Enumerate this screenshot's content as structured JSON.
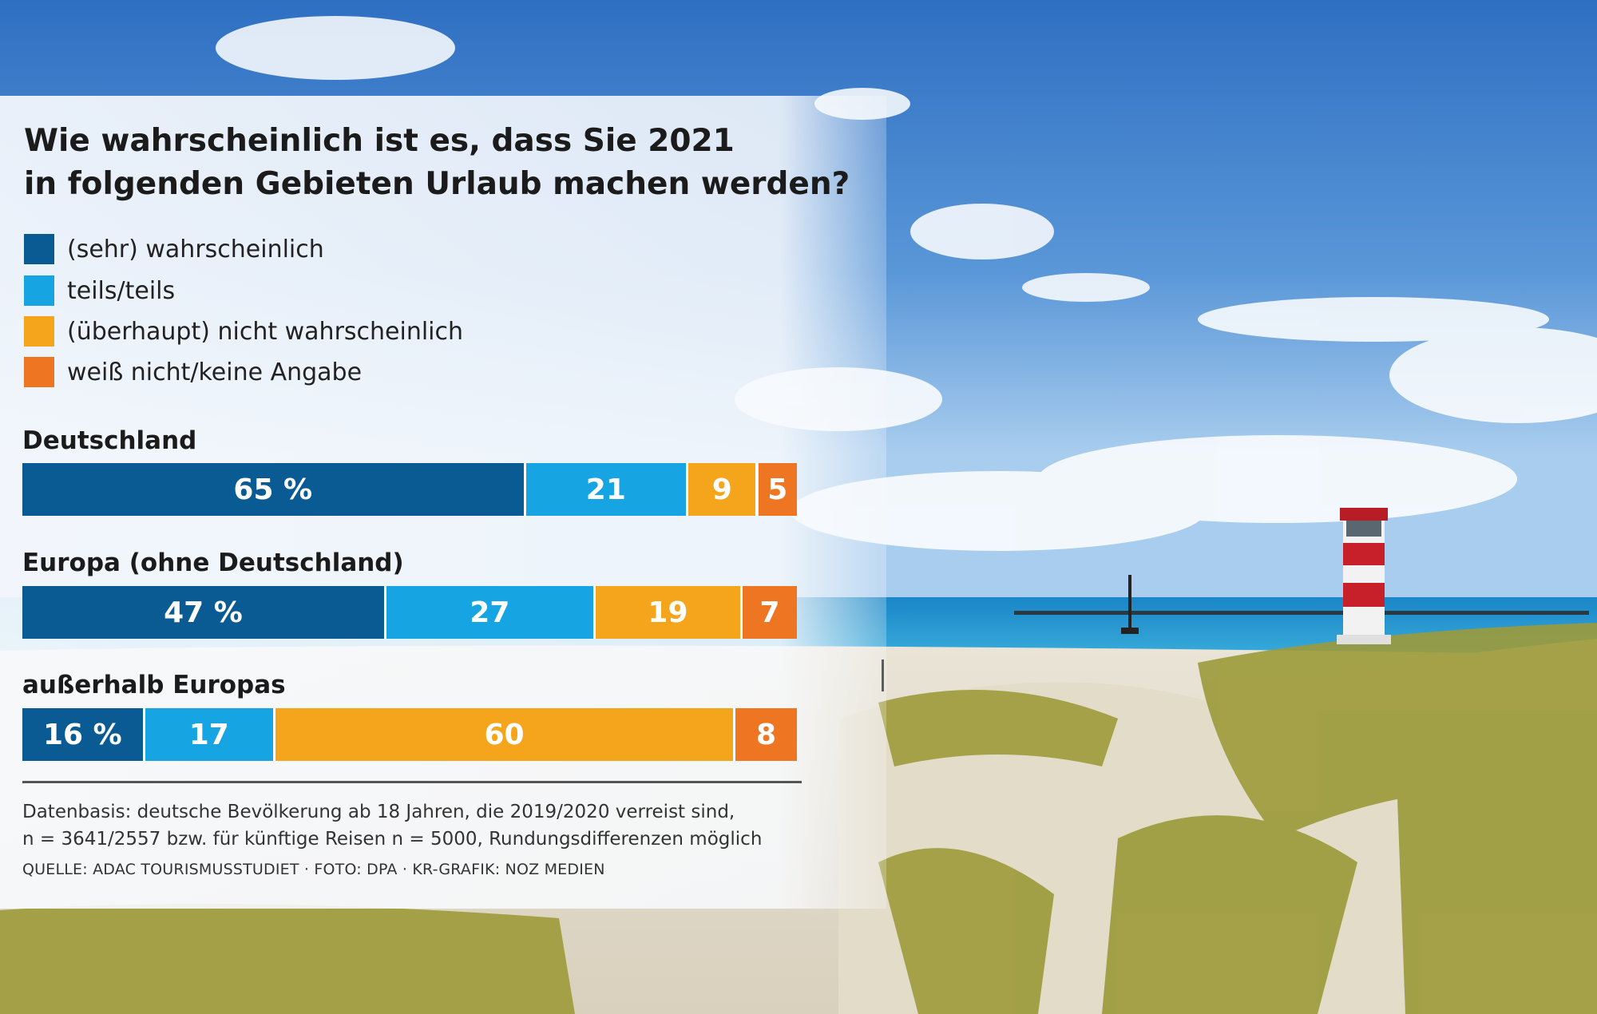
{
  "chart_data": {
    "type": "bar",
    "orientation": "horizontal-stacked",
    "title_line1": "Wie wahrscheinlich ist es, dass Sie 2021",
    "title_line2": "in folgenden Gebieten Urlaub machen werden?",
    "legend": [
      {
        "label": "(sehr) wahrscheinlich",
        "color": "#0a5a94"
      },
      {
        "label": "teils/teils",
        "color": "#16a4e3"
      },
      {
        "label": "(überhaupt) nicht wahrscheinlich",
        "color": "#f4a51c"
      },
      {
        "label": "weiß nicht/keine Angabe",
        "color": "#ee7623"
      }
    ],
    "categories": [
      "Deutschland",
      "Europa (ohne Deutschland)",
      "außerhalb Europas"
    ],
    "series": [
      {
        "name": "(sehr) wahrscheinlich",
        "values": [
          65,
          47,
          16
        ]
      },
      {
        "name": "teils/teils",
        "values": [
          21,
          27,
          17
        ]
      },
      {
        "name": "(überhaupt) nicht wahrscheinlich",
        "values": [
          9,
          19,
          60
        ]
      },
      {
        "name": "weiß nicht/keine Angabe",
        "values": [
          5,
          7,
          8
        ]
      }
    ],
    "value_labels": [
      [
        "65 %",
        "21",
        "9",
        "5"
      ],
      [
        "47 %",
        "27",
        "19",
        "7"
      ],
      [
        "16 %",
        "17",
        "60",
        "8"
      ]
    ],
    "xlim": [
      0,
      100
    ],
    "note_line1": "Datenbasis: deutsche Bevölkerung ab 18 Jahren, die 2019/2020 verreist sind,",
    "note_line2": "n = 3641/2557 bzw. für künftige Reisen n = 5000, Rundungsdifferenzen möglich",
    "source": "QUELLE: ADAC TOURISMUSSTUDIET · FOTO: DPA · KR-GRAFIK: NOZ MEDIEN"
  }
}
